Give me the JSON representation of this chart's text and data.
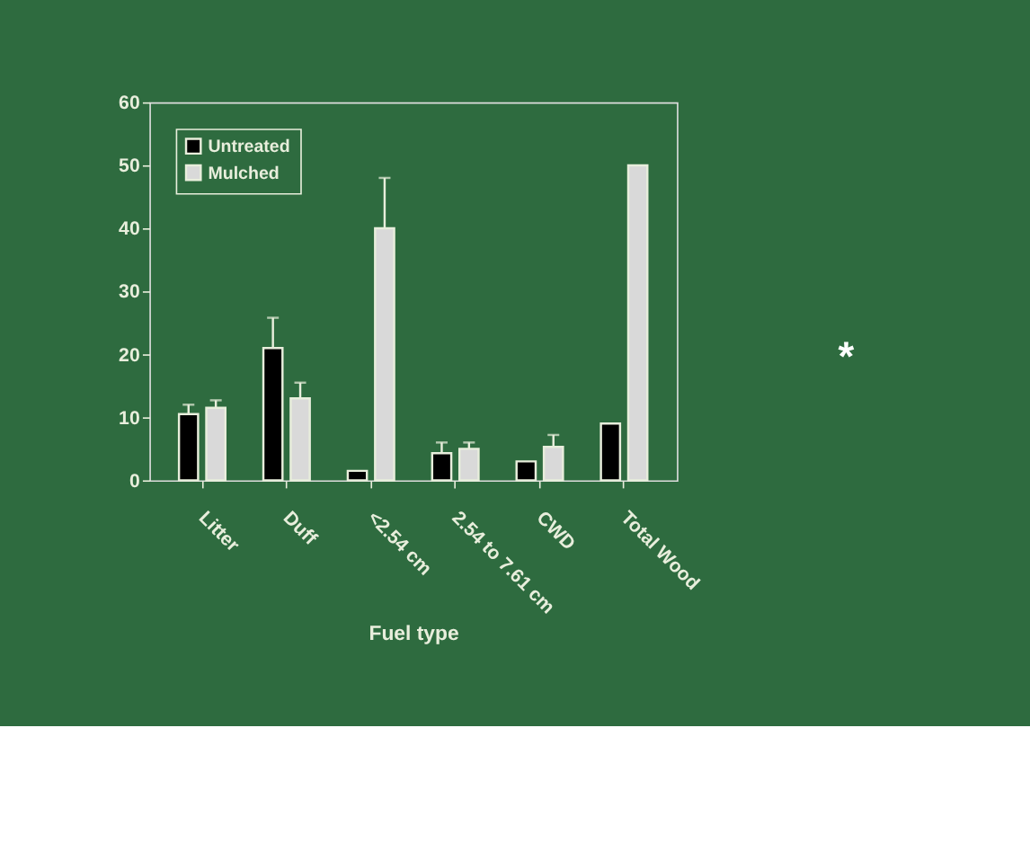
{
  "chart_data": {
    "type": "bar",
    "xlabel": "Fuel type",
    "categories": [
      "Litter",
      "Duff",
      "<2.54 cm",
      "2.54 to 7.61 cm",
      "CWD",
      "Total Wood"
    ],
    "series": [
      {
        "name": "Untreated",
        "color": "#000000",
        "values": [
          10.5,
          21,
          1.5,
          4.3,
          3,
          9
        ],
        "errors": [
          [
            10.5,
            12
          ],
          [
            21,
            25.8
          ],
          null,
          [
            4.3,
            6
          ],
          null,
          null
        ]
      },
      {
        "name": "Mulched",
        "color": "#d9d9d9",
        "values": [
          11.5,
          13,
          40,
          5,
          5.3,
          50
        ],
        "errors": [
          [
            11.5,
            12.7
          ],
          [
            13,
            15.5
          ],
          [
            40,
            48
          ],
          [
            5,
            6
          ],
          [
            5.3,
            7.2
          ],
          null
        ]
      }
    ],
    "ylim": [
      0,
      60
    ],
    "yticks": [
      0,
      10,
      20,
      30,
      40,
      50,
      60
    ],
    "grid": false,
    "legend": "top left",
    "annotations": [
      "*"
    ]
  }
}
